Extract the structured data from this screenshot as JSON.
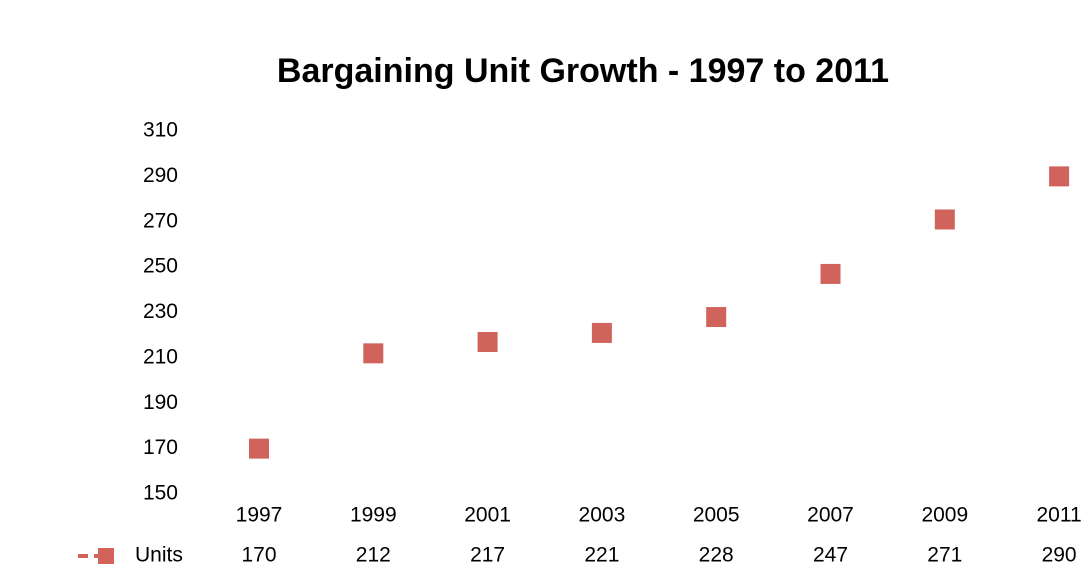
{
  "chart_data": {
    "type": "scatter",
    "title": "Bargaining Unit Growth - 1997 to 2011",
    "categories": [
      "1997",
      "1999",
      "2001",
      "2003",
      "2005",
      "2007",
      "2009",
      "2011"
    ],
    "series": [
      {
        "name": "Units",
        "color": "#d0635c",
        "values": [
          170,
          212,
          217,
          221,
          228,
          247,
          271,
          290
        ]
      }
    ],
    "ylim": [
      150,
      310
    ],
    "yticks": [
      150,
      170,
      190,
      210,
      230,
      250,
      270,
      290,
      310
    ],
    "grid": false
  }
}
